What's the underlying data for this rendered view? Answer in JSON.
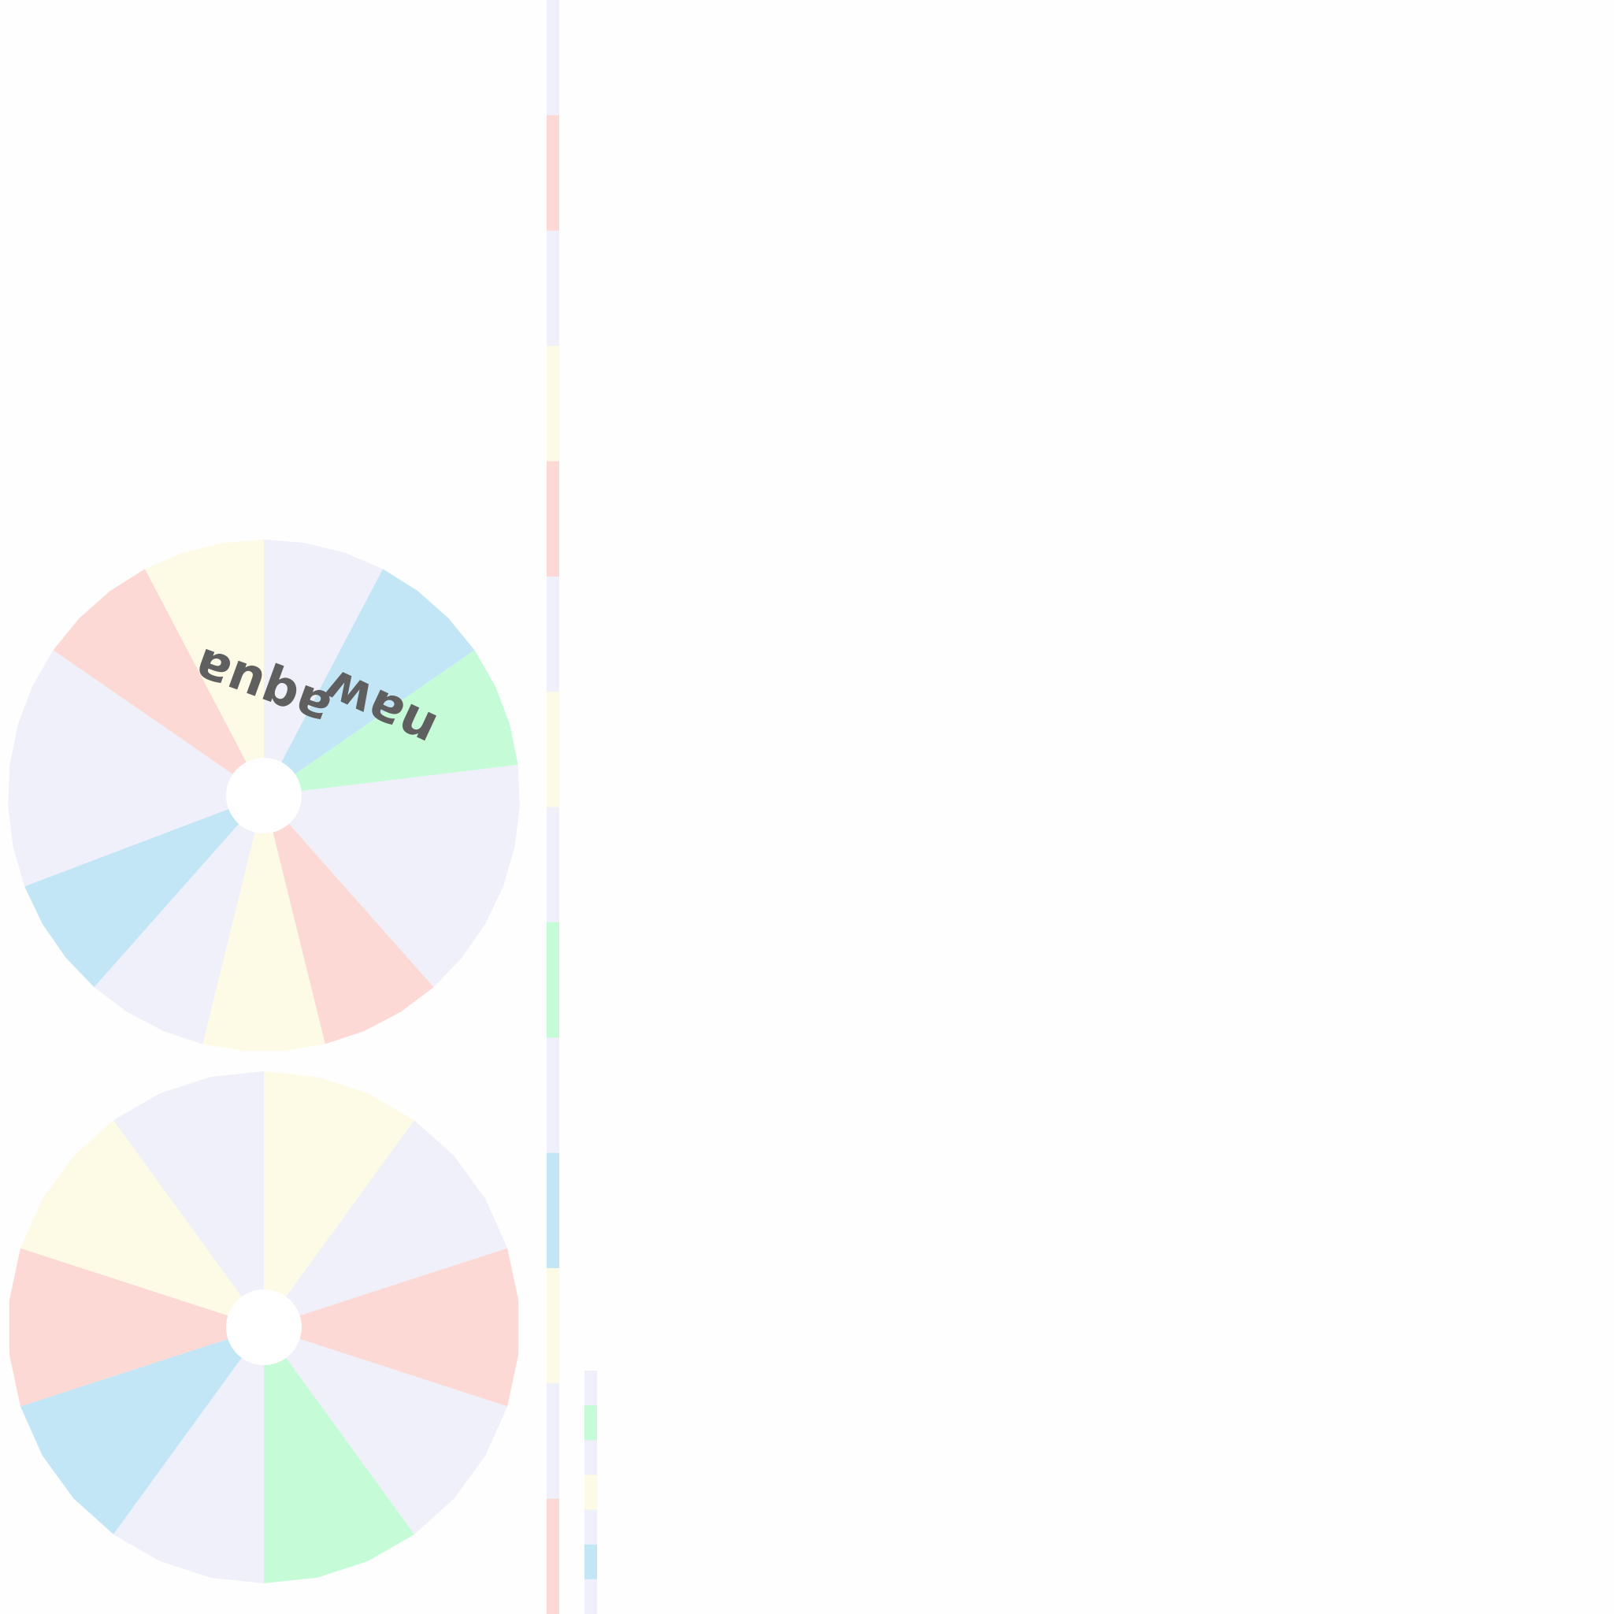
{
  "colors": {
    "pink": "#fcd9d4",
    "yellow": "#fdfae6",
    "lavender": "#eff0f9",
    "blue": "#c3e6f7",
    "green": "#c5fbd6",
    "hub": "#ffffff",
    "label": "#5f5f5f"
  },
  "wheels": [
    {
      "label_left": "ɐnbɐ",
      "label_right": "ʍɐu",
      "segments": [
        "lavender",
        "blue",
        "green",
        "lavender",
        "lavender",
        "pink",
        "yellow",
        "lavender",
        "blue",
        "lavender",
        "lavender",
        "pink",
        "yellow"
      ]
    },
    {
      "segments": [
        "yellow",
        "lavender",
        "pink",
        "lavender",
        "green",
        "lavender",
        "blue",
        "pink",
        "yellow",
        "lavender"
      ]
    }
  ],
  "strips": {
    "main": [
      "lavender",
      "pink",
      "lavender",
      "yellow",
      "pink",
      "lavender",
      "yellow",
      "lavender",
      "green",
      "lavender",
      "blue",
      "yellow",
      "lavender",
      "pink"
    ],
    "small": [
      "lavender",
      "green",
      "lavender",
      "yellow",
      "lavender",
      "blue",
      "lavender"
    ]
  }
}
